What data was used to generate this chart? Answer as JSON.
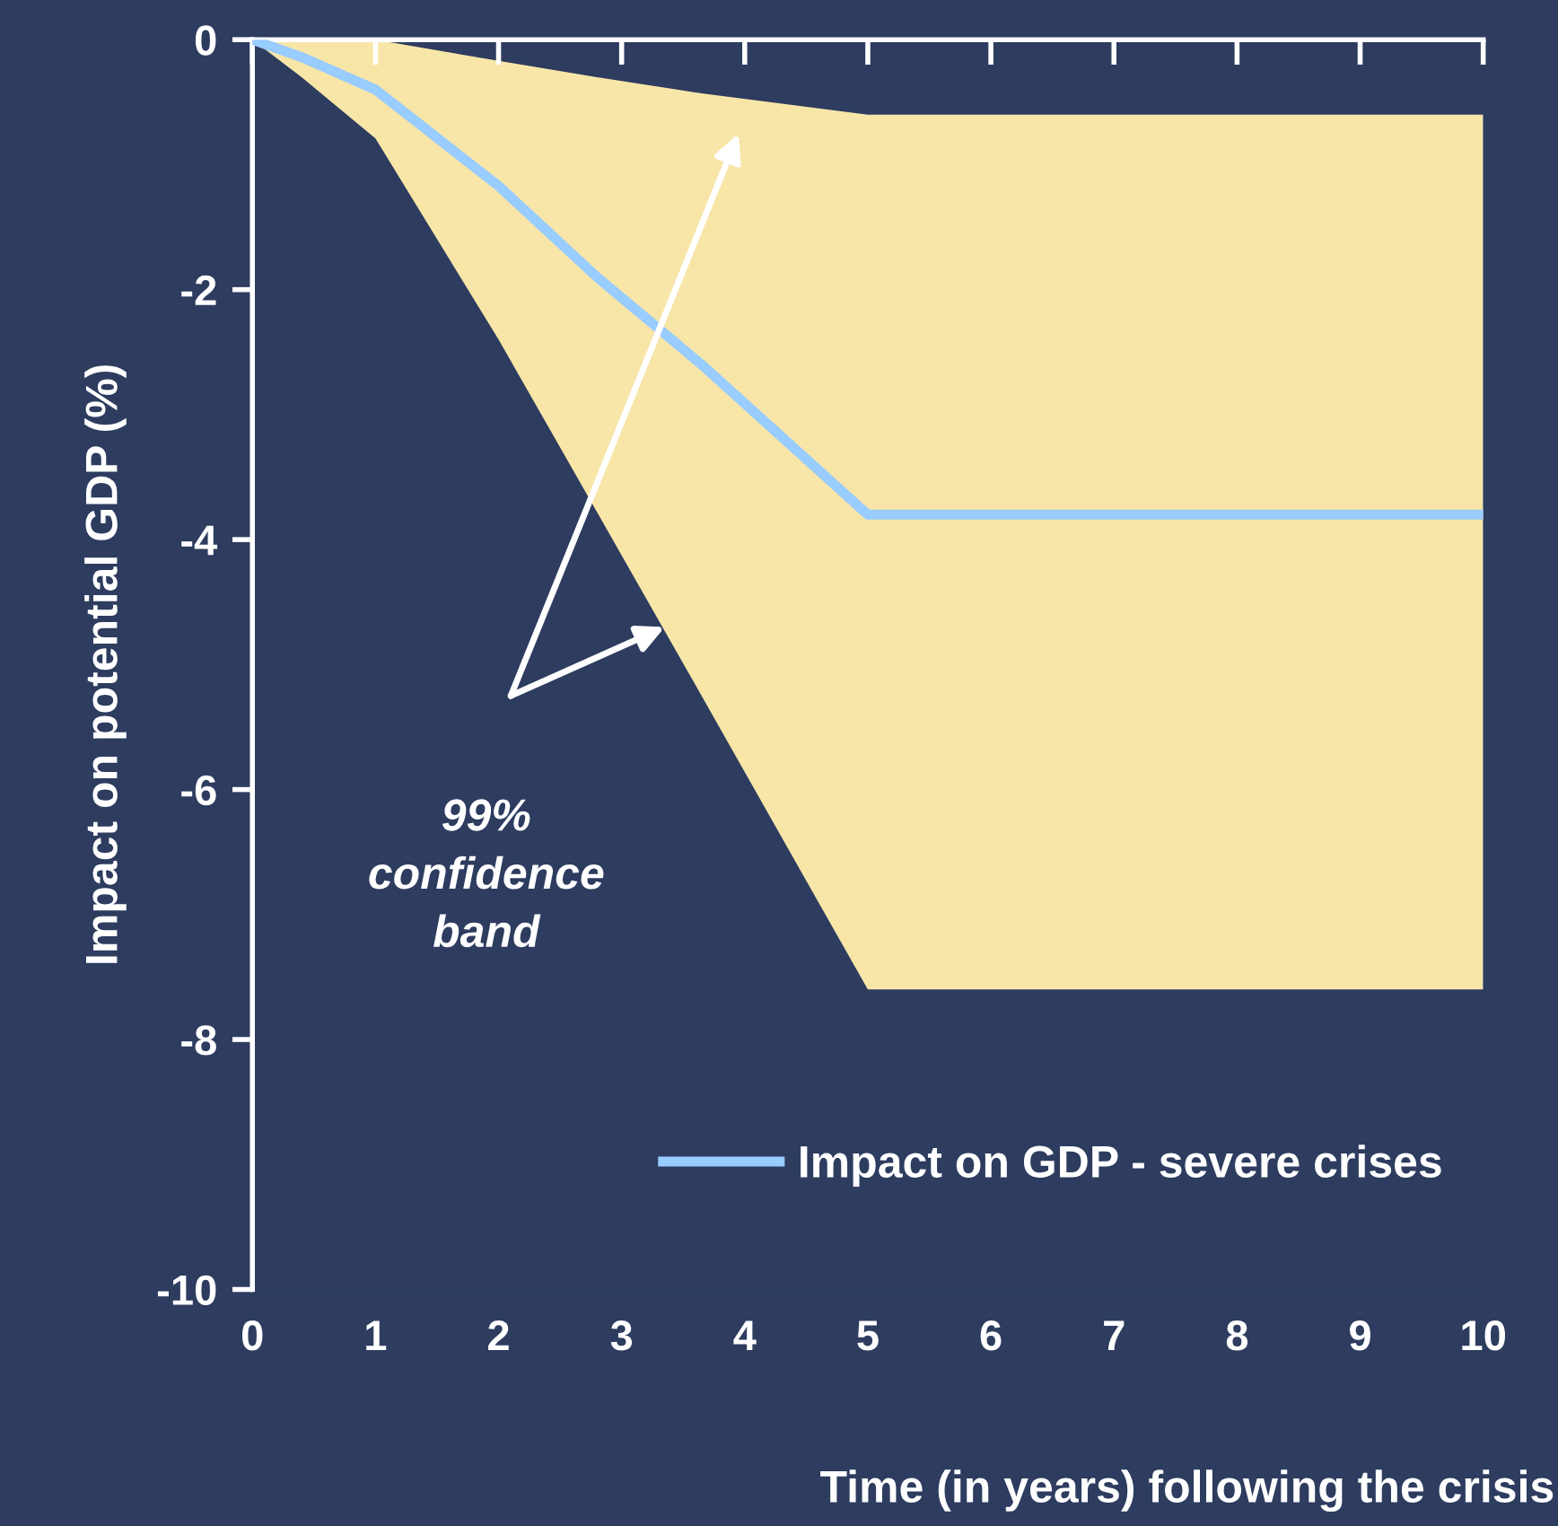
{
  "chart_data": {
    "type": "line",
    "xlabel": "Time (in years) following the crisis",
    "ylabel": "Impact on potential GDP (%)",
    "xlim": [
      0,
      10
    ],
    "xticks": [
      0,
      1,
      2,
      3,
      4,
      5,
      6,
      7,
      8,
      9,
      10
    ],
    "ylim": [
      -10,
      0
    ],
    "yticks": [
      -10,
      -8,
      -6,
      -4,
      -2,
      0
    ],
    "grid": false,
    "legend": "bottom right",
    "marker": "none",
    "line_style": "solid",
    "series": [
      {
        "name": "Impact on GDP - severe crises",
        "color": "#99ccff",
        "x": [
          0,
          0.4,
          1,
          2,
          2.8,
          3.65,
          5,
          10
        ],
        "values": [
          0,
          -0.14,
          -0.4,
          -1.17,
          -1.9,
          -2.6,
          -3.8,
          -3.8
        ],
        "lower": [
          0,
          -0.3,
          -0.79,
          -2.4,
          -3.78,
          -5.25,
          -7.6,
          -7.6
        ],
        "upper": [
          0,
          0,
          0,
          -0.17,
          -0.3,
          -0.43,
          -0.6,
          -0.6
        ]
      }
    ],
    "annotations": [
      "99%\nconfidence\nband"
    ]
  }
}
